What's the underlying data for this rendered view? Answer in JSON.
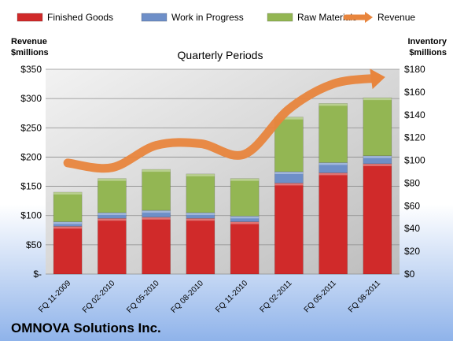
{
  "chart_data": {
    "type": "bar",
    "title": "Quarterly Periods",
    "footer": "OMNOVA Solutions Inc.",
    "left_axis": {
      "label_line1": "Revenue",
      "label_line2": "$millions",
      "min": 0,
      "max": 350,
      "step": 50,
      "ticks": [
        "$-",
        "$50",
        "$100",
        "$150",
        "$200",
        "$250",
        "$300",
        "$350"
      ]
    },
    "right_axis": {
      "label_line1": "Inventory",
      "label_line2": "$millions",
      "min": 0,
      "max": 180,
      "step": 20,
      "ticks": [
        "$0",
        "$20",
        "$40",
        "$60",
        "$80",
        "$100",
        "$120",
        "$140",
        "$160",
        "$180"
      ]
    },
    "categories": [
      "FQ 11-2009",
      "FQ 02-2010",
      "FQ 05-2010",
      "FQ 08-2010",
      "FQ 11-2010",
      "FQ 02-2011",
      "FQ 05-2011",
      "FQ 08-2011"
    ],
    "series": [
      {
        "name": "Finished Goods",
        "axis": "right",
        "kind": "stacked-bar",
        "color": "#d02a2a",
        "values": [
          42,
          49,
          50,
          49,
          46,
          80,
          89,
          97
        ]
      },
      {
        "name": "Work in Progress",
        "axis": "right",
        "kind": "stacked-bar",
        "color": "#6e8fc8",
        "values": [
          4,
          5,
          6,
          5,
          5,
          10,
          9,
          7
        ]
      },
      {
        "name": "Raw Materials",
        "axis": "right",
        "kind": "stacked-bar",
        "color": "#93b653",
        "values": [
          26,
          30,
          36,
          34,
          33,
          48,
          52,
          51
        ]
      },
      {
        "name": "Revenue",
        "axis": "left",
        "kind": "line",
        "color": "#e8853d",
        "values": [
          190,
          182,
          220,
          223,
          205,
          282,
          325,
          335
        ]
      }
    ],
    "legend_position": "top",
    "grid": true
  }
}
